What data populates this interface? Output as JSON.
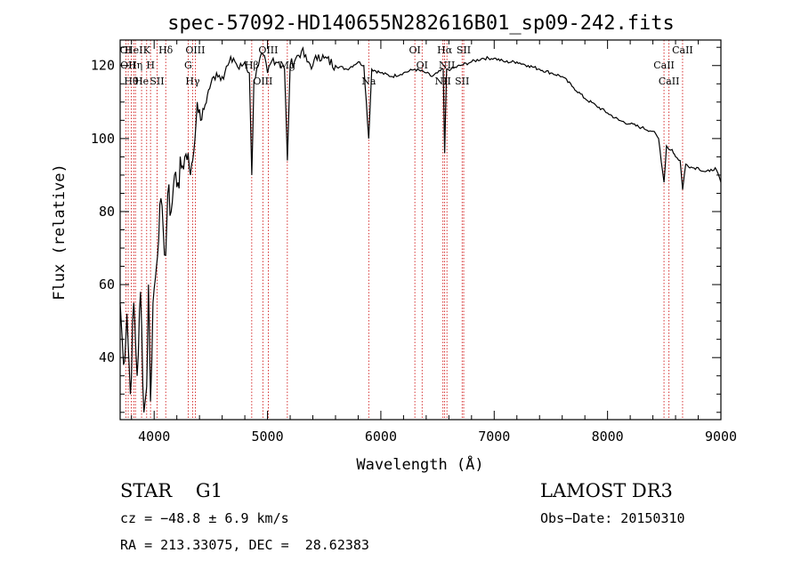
{
  "chart_data": {
    "type": "line",
    "title": "spec-57092-HD140655N282616B01_sp09-242.fits",
    "xlabel": "Wavelength (Å)",
    "ylabel": "Flux (relative)",
    "xlim": [
      3700,
      9000
    ],
    "ylim": [
      23,
      127
    ],
    "xticks": [
      4000,
      5000,
      6000,
      7000,
      8000,
      9000
    ],
    "yticks": [
      40,
      60,
      80,
      100,
      120
    ],
    "series": [
      {
        "name": "spectrum",
        "x": [
          3700,
          3730,
          3760,
          3790,
          3820,
          3850,
          3880,
          3910,
          3934,
          3950,
          3968,
          3990,
          4020,
          4050,
          4080,
          4102,
          4120,
          4150,
          4180,
          4210,
          4240,
          4270,
          4300,
          4320,
          4340,
          4360,
          4380,
          4410,
          4440,
          4470,
          4500,
          4550,
          4600,
          4650,
          4700,
          4750,
          4800,
          4840,
          4861,
          4880,
          4920,
          4960,
          5000,
          5050,
          5100,
          5150,
          5175,
          5200,
          5250,
          5300,
          5350,
          5400,
          5450,
          5500,
          5600,
          5700,
          5800,
          5850,
          5893,
          5920,
          6000,
          6100,
          6200,
          6300,
          6400,
          6450,
          6500,
          6550,
          6563,
          6580,
          6620,
          6700,
          6800,
          6900,
          7000,
          7100,
          7200,
          7300,
          7400,
          7500,
          7600,
          7700,
          7800,
          7900,
          8000,
          8100,
          8200,
          8300,
          8400,
          8450,
          8498,
          8520,
          8542,
          8570,
          8600,
          8640,
          8662,
          8690,
          8750,
          8800,
          8850,
          8900,
          8950,
          9000
        ],
        "y": [
          55,
          38,
          52,
          30,
          55,
          35,
          58,
          25,
          32,
          60,
          28,
          55,
          65,
          82,
          75,
          68,
          85,
          80,
          90,
          88,
          92,
          95,
          96,
          90,
          94,
          100,
          110,
          105,
          108,
          112,
          115,
          118,
          117,
          120,
          122,
          119,
          121,
          118,
          90,
          116,
          120,
          123,
          118,
          122,
          121,
          119,
          94,
          120,
          122,
          124,
          121,
          120,
          123,
          122,
          120,
          119,
          121,
          120,
          100,
          119,
          118,
          117,
          118,
          119,
          118,
          117,
          118,
          119,
          96,
          119,
          119,
          120,
          121,
          122,
          122,
          121,
          121,
          120,
          119,
          118,
          117,
          114,
          111,
          109,
          107,
          105,
          104,
          103,
          102,
          100,
          88,
          98,
          97,
          97,
          95,
          94,
          86,
          93,
          92,
          92,
          91,
          91,
          92,
          88
        ]
      }
    ],
    "lines": [
      {
        "wl": 3750,
        "label": "OI"
      },
      {
        "wl": 3771,
        "label": "OII"
      },
      {
        "wl": 3798,
        "label": "Hθ"
      },
      {
        "wl": 3820,
        "label": "HeI"
      },
      {
        "wl": 3835,
        "label": "Hη"
      },
      {
        "wl": 3889,
        "label": "He"
      },
      {
        "wl": 3934,
        "label": "K"
      },
      {
        "wl": 3968,
        "label": "H"
      },
      {
        "wl": 4026,
        "label": "SII"
      },
      {
        "wl": 4102,
        "label": "Hδ"
      },
      {
        "wl": 4300,
        "label": "G"
      },
      {
        "wl": 4340,
        "label": "Hγ"
      },
      {
        "wl": 4363,
        "label": "OIII"
      },
      {
        "wl": 4861,
        "label": "Hβ"
      },
      {
        "wl": 4959,
        "label": "OIII"
      },
      {
        "wl": 5007,
        "label": "OIII"
      },
      {
        "wl": 5175,
        "label": "Mg"
      },
      {
        "wl": 5893,
        "label": "Na"
      },
      {
        "wl": 6300,
        "label": "OI"
      },
      {
        "wl": 6364,
        "label": "OI"
      },
      {
        "wl": 6548,
        "label": "NII"
      },
      {
        "wl": 6563,
        "label": "Hα"
      },
      {
        "wl": 6583,
        "label": "NII"
      },
      {
        "wl": 6717,
        "label": "SII"
      },
      {
        "wl": 6731,
        "label": "SII"
      },
      {
        "wl": 8498,
        "label": "CaII"
      },
      {
        "wl": 8542,
        "label": "CaII"
      },
      {
        "wl": 8662,
        "label": "CaII"
      }
    ]
  },
  "info": {
    "class_line": "STAR    G1",
    "survey": "LAMOST DR3",
    "cz": "cz = −48.8 ± 6.9 km/s",
    "obs_date": "Obs−Date: 20150310",
    "coords": "RA = 213.33075, DEC =  28.62383"
  },
  "colors": {
    "axis": "#000000",
    "spectrum": "#000000",
    "line_markers": "#cc0000"
  }
}
